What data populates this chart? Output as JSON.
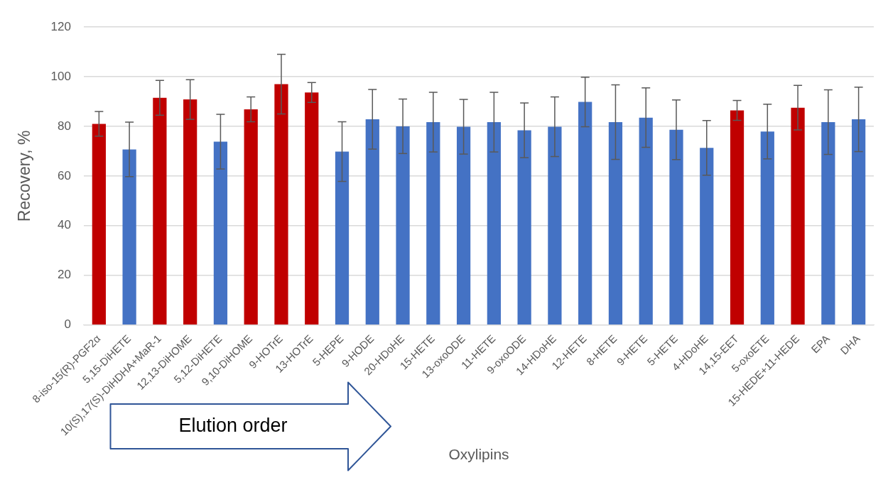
{
  "chart_data": {
    "type": "bar",
    "xlabel": "Oxylipins",
    "ylabel": "Recovery, %",
    "categories": [
      "8-iso-15(R)-PGF2α",
      "5,15-DiHETE",
      "10(S),17(S)-DiHDHA+MaR-1",
      "12,13-DiHOME",
      "5,12-DiHETE",
      "9,10-DiHOME",
      "9-HOTrE",
      "13-HOTrE",
      "5-HEPE",
      "9-HODE",
      "20-HDoHE",
      "15-HETE",
      "13-oxoODE",
      "11-HETE",
      "9-oxoODE",
      "14-HDoHE",
      "12-HETE",
      "8-HETE",
      "9-HETE",
      "5-HETE",
      "4-HDoHE",
      "14,15-EET",
      "5-oxoETE",
      "15-HEDE+11-HEDE",
      "EPA",
      "DHA"
    ],
    "values": [
      81,
      70.7,
      91.5,
      90.8,
      73.8,
      86.8,
      97,
      93.6,
      69.8,
      82.8,
      80,
      81.7,
      79.8,
      81.7,
      78.4,
      79.8,
      89.8,
      81.7,
      83.5,
      78.6,
      71.3,
      86.4,
      77.9,
      87.5,
      81.7,
      82.8
    ],
    "errors": [
      5,
      11,
      7,
      8,
      11,
      5,
      12,
      4,
      12,
      12,
      11,
      12,
      11,
      12,
      11,
      12,
      10,
      15,
      12,
      12,
      11,
      4,
      11,
      9,
      13,
      13
    ],
    "colors": [
      "#c00000",
      "#4472c4",
      "#c00000",
      "#c00000",
      "#4472c4",
      "#c00000",
      "#c00000",
      "#c00000",
      "#4472c4",
      "#4472c4",
      "#4472c4",
      "#4472c4",
      "#4472c4",
      "#4472c4",
      "#4472c4",
      "#4472c4",
      "#4472c4",
      "#4472c4",
      "#4472c4",
      "#4472c4",
      "#4472c4",
      "#c00000",
      "#4472c4",
      "#c00000",
      "#4472c4",
      "#4472c4"
    ],
    "ylim": [
      0,
      120
    ],
    "yticks": [
      0,
      20,
      40,
      60,
      80,
      100,
      120
    ],
    "grid": "y",
    "legend": false,
    "annotations": [
      "Elution order"
    ]
  }
}
